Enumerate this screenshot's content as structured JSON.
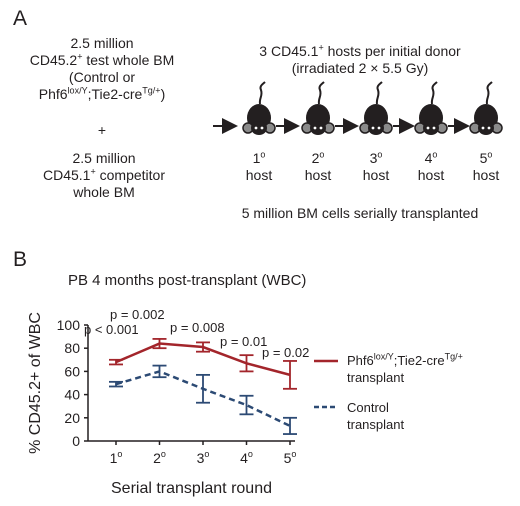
{
  "panelA": {
    "label": "A",
    "test_cells": {
      "line1": "2.5 million",
      "line2_pre": "CD45.2",
      "line2_sup": "+",
      "line2_post": " test whole BM",
      "line3": "(Control or",
      "line4_pre": "Phf6",
      "line4_sup1": "lox/Y",
      "line4_mid": ";Tie2-cre",
      "line4_sup2": "Tg/+",
      "line4_post": ")"
    },
    "plus": "+",
    "competitor": {
      "line1": "2.5 million",
      "line2_pre": "CD45.1",
      "line2_sup": "+",
      "line2_post": " competitor",
      "line3": "whole BM"
    },
    "hosts_header": {
      "line1_pre": "3 CD45.1",
      "line1_sup": "+",
      "line1_post": " hosts per initial donor",
      "line2": "(irradiated 2 × 5.5 Gy)"
    },
    "hosts": [
      {
        "num": "1",
        "sup": "o",
        "label": "host"
      },
      {
        "num": "2",
        "sup": "o",
        "label": "host"
      },
      {
        "num": "3",
        "sup": "o",
        "label": "host"
      },
      {
        "num": "4",
        "sup": "o",
        "label": "host"
      },
      {
        "num": "5",
        "sup": "o",
        "label": "host"
      }
    ],
    "footer": "5 million BM cells serially transplanted"
  },
  "panelB": {
    "label": "B",
    "title": "PB 4 months post-transplant (WBC)",
    "pvalues": [
      "p < 0.001",
      "p = 0.002",
      "p = 0.008",
      "p = 0.01",
      "p = 0.02"
    ]
  },
  "colors": {
    "phf6": "#a3252b",
    "control": "#2c4a74",
    "axis": "#231f20"
  },
  "chart_data": {
    "type": "line",
    "title": "PB 4 months post-transplant (WBC)",
    "xlabel": "Serial transplant round",
    "ylabel": "% CD45.2+ of WBC",
    "categories": [
      "1o",
      "2o",
      "3o",
      "4o",
      "5o"
    ],
    "ylim": [
      0,
      100
    ],
    "yticks": [
      "0",
      "20",
      "40",
      "60",
      "80",
      "100"
    ],
    "legend_position": "right",
    "grid": false,
    "series": [
      {
        "name": "Phf6lox/Y;Tie2-creTg/+ transplant",
        "style": "solid",
        "values": [
          68,
          84,
          81,
          67,
          57
        ],
        "err": [
          2,
          4,
          4,
          7,
          12
        ]
      },
      {
        "name": "Control transplant",
        "style": "dashed",
        "values": [
          49,
          60,
          45,
          31,
          13
        ],
        "err": [
          2,
          5,
          12,
          8,
          7
        ]
      }
    ],
    "legend": [
      {
        "pre": "Phf6",
        "sup1": "lox/Y",
        "mid": ";Tie2-cre",
        "sup2": "Tg/+",
        "line2": "transplant"
      },
      {
        "line1": "Control",
        "line2": "transplant"
      }
    ]
  }
}
